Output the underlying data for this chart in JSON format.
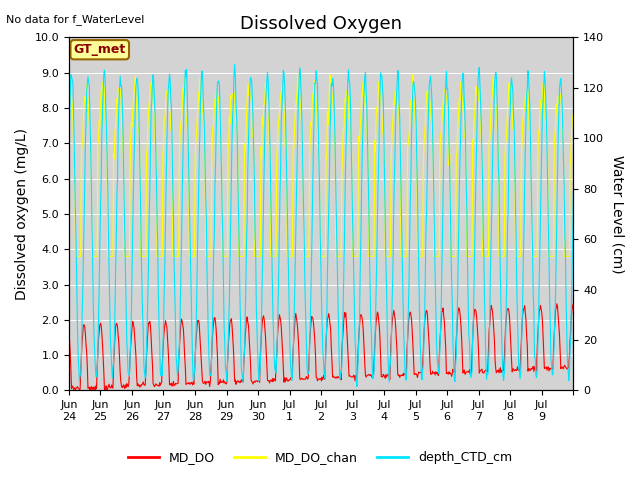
{
  "title": "Dissolved Oxygen",
  "ylabel_left": "Dissolved oxygen (mg/L)",
  "ylabel_right": "Water Level (cm)",
  "no_data_text": "No data for f_WaterLevel",
  "gt_met_label": "GT_met",
  "ylim_left": [
    0,
    10
  ],
  "ylim_right": [
    0,
    140
  ],
  "yticks_left": [
    0.0,
    1.0,
    2.0,
    3.0,
    4.0,
    5.0,
    6.0,
    7.0,
    8.0,
    9.0,
    10.0
  ],
  "yticks_right": [
    0,
    20,
    40,
    60,
    80,
    100,
    120,
    140
  ],
  "xtick_positions": [
    0,
    1,
    2,
    3,
    4,
    5,
    6,
    7,
    8,
    9,
    10,
    11,
    12,
    13,
    14,
    15,
    16
  ],
  "xtick_labels": [
    "Jun\n24",
    "Jun\n25",
    "Jun\n26",
    "Jun\n27",
    "Jun\n28",
    "Jun\n29",
    "Jun\n30",
    "Jul\n1",
    "Jul\n2",
    "Jul\n3",
    "Jul\n4",
    "Jul\n5",
    "Jul\n6",
    "Jul\n7",
    "Jul\n8",
    "Jul\n9",
    ""
  ],
  "color_MD_DO": "#ff0000",
  "color_MD_DO_chan": "#ffff00",
  "color_depth_CTD_cm": "#00e5ff",
  "bg_color": "#d3d3d3",
  "legend_labels": [
    "MD_DO",
    "MD_DO_chan",
    "depth_CTD_cm"
  ],
  "title_fontsize": 13,
  "label_fontsize": 10,
  "tick_fontsize": 8,
  "n_days": 16
}
